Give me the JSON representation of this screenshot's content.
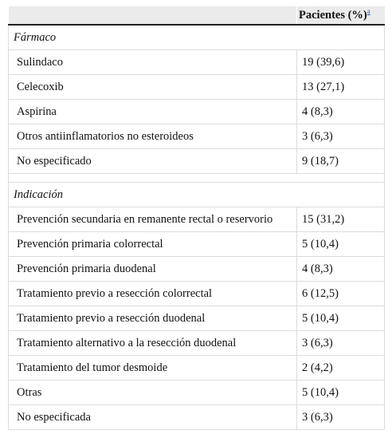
{
  "table": {
    "header": {
      "col1": "",
      "col2": "Pacientes (%)",
      "footnote_mark": "a"
    },
    "section_farmaco": {
      "title": "Fármaco",
      "rows": [
        {
          "label": "Sulindaco",
          "value": "19 (39,6)"
        },
        {
          "label": "Celecoxib",
          "value": "13 (27,1)"
        },
        {
          "label": "Aspirina",
          "value": "4 (8,3)"
        },
        {
          "label": "Otros antiinflamatorios no esteroideos",
          "value": "3 (6,3)"
        },
        {
          "label": "No especificado",
          "value": "9 (18,7)"
        }
      ]
    },
    "section_indicacion": {
      "title": "Indicación",
      "rows": [
        {
          "label": "Prevención secundaria en remanente rectal o reservorio",
          "value": "15 (31,2)"
        },
        {
          "label": "Prevención primaria colorrectal",
          "value": "5 (10,4)"
        },
        {
          "label": "Prevención primaria duodenal",
          "value": "4 (8,3)"
        },
        {
          "label": "Tratamiento previo a resección colorrectal",
          "value": "6 (12,5)"
        },
        {
          "label": "Tratamiento previo a resección duodenal",
          "value": "5 (10,4)"
        },
        {
          "label": "Tratamiento alternativo a la resección duodenal",
          "value": "3 (6,3)"
        },
        {
          "label": "Tratamiento del tumor desmoide",
          "value": "2 (4,2)"
        },
        {
          "label": "Otras",
          "value": "5 (10,4)"
        },
        {
          "label": "No especificada",
          "value": "3 (6,3)"
        }
      ]
    }
  }
}
